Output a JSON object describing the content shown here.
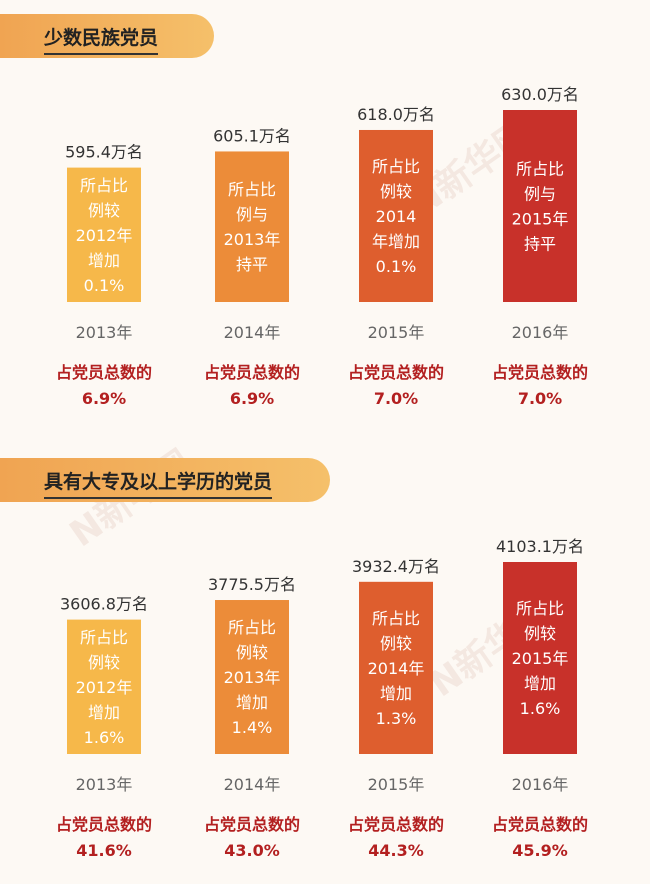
{
  "sections": [
    {
      "title": "少数民族党员"
    },
    {
      "title": "具有大专及以上学历的党员"
    }
  ],
  "chart_data": [
    {
      "type": "bar",
      "title": "少数民族党员",
      "categories": [
        "2013年",
        "2014年",
        "2015年",
        "2016年"
      ],
      "value_labels": [
        "595.4万名",
        "605.1万名",
        "618.0万名",
        "630.0万名"
      ],
      "values": [
        595.4,
        605.1,
        618.0,
        630.0
      ],
      "bar_notes": [
        [
          "所占比",
          "例较",
          "2012年",
          "增加",
          "0.1%"
        ],
        [
          "所占比",
          "例与",
          "2013年",
          "持平"
        ],
        [
          "所占比",
          "例较",
          "2014",
          "年增加",
          "0.1%"
        ],
        [
          "所占比",
          "例与",
          "2015年",
          "持平"
        ]
      ],
      "share_label": "占党员总数的",
      "shares": [
        "6.9%",
        "6.9%",
        "7.0%",
        "7.0%"
      ],
      "colors": [
        "#f6b84a",
        "#ec8c39",
        "#de5e2e",
        "#c8312a"
      ]
    },
    {
      "type": "bar",
      "title": "具有大专及以上学历的党员",
      "categories": [
        "2013年",
        "2014年",
        "2015年",
        "2016年"
      ],
      "value_labels": [
        "3606.8万名",
        "3775.5万名",
        "3932.4万名",
        "4103.1万名"
      ],
      "values": [
        3606.8,
        3775.5,
        3932.4,
        4103.1
      ],
      "bar_notes": [
        [
          "所占比",
          "例较",
          "2012年",
          "增加",
          "1.6%"
        ],
        [
          "所占比",
          "例较",
          "2013年",
          "增加",
          "1.4%"
        ],
        [
          "所占比",
          "例较",
          "2014年",
          "增加",
          "1.3%"
        ],
        [
          "所占比",
          "例较",
          "2015年",
          "增加",
          "1.6%"
        ]
      ],
      "share_label": "占党员总数的",
      "shares": [
        "41.6%",
        "43.0%",
        "44.3%",
        "45.9%"
      ],
      "colors": [
        "#f6b84a",
        "#ec8c39",
        "#de5e2e",
        "#c8312a"
      ]
    }
  ]
}
